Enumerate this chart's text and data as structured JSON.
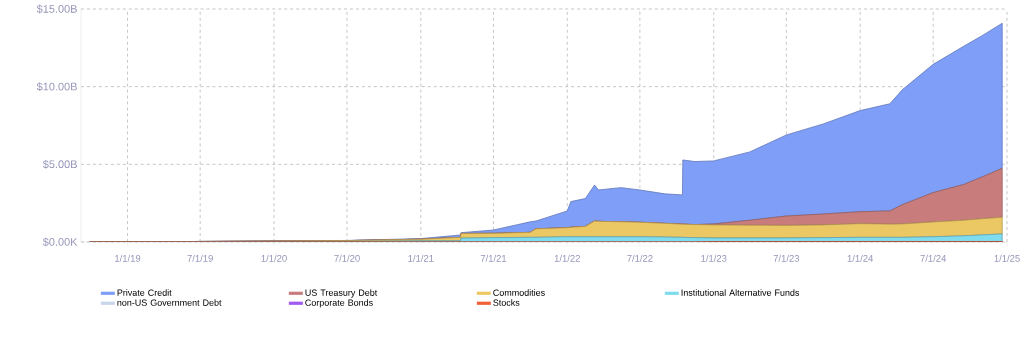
{
  "chart_data": {
    "type": "area",
    "stacked": true,
    "grid": true,
    "legend": "bottom",
    "x": [
      "2018-09-29",
      "2019-06-01",
      "2020-01-01",
      "2020-07-01",
      "2021-01-01",
      "2021-04-10",
      "2021-04-11",
      "2021-07-01",
      "2021-10-01",
      "2021-10-15",
      "2022-01-01",
      "2022-01-10",
      "2022-02-15",
      "2022-03-10",
      "2022-03-20",
      "2022-05-15",
      "2022-07-01",
      "2022-09-01",
      "2022-10-15",
      "2022-10-16",
      "2022-11-15",
      "2023-01-01",
      "2023-04-01",
      "2023-07-01",
      "2023-10-01",
      "2024-01-01",
      "2024-03-15",
      "2024-04-15",
      "2024-07-01",
      "2024-09-15",
      "2024-11-01",
      "2024-12-20"
    ],
    "xlim": [
      "2018-09-07",
      "2025-01-01"
    ],
    "xticks": [
      {
        "value": "2019-01-01",
        "label": "1/1/19"
      },
      {
        "value": "2019-07-01",
        "label": "7/1/19"
      },
      {
        "value": "2020-01-01",
        "label": "1/1/20"
      },
      {
        "value": "2020-07-01",
        "label": "7/1/20"
      },
      {
        "value": "2021-01-01",
        "label": "1/1/21"
      },
      {
        "value": "2021-07-01",
        "label": "7/1/21"
      },
      {
        "value": "2022-01-01",
        "label": "1/1/22"
      },
      {
        "value": "2022-07-01",
        "label": "7/1/22"
      },
      {
        "value": "2023-01-01",
        "label": "1/1/23"
      },
      {
        "value": "2023-07-01",
        "label": "7/1/23"
      },
      {
        "value": "2024-01-01",
        "label": "1/1/24"
      },
      {
        "value": "2024-07-01",
        "label": "7/1/24"
      },
      {
        "value": "2025-01-01",
        "label": "1/1/25"
      }
    ],
    "ylim": [
      0,
      15
    ],
    "yticks": [
      {
        "value": 0,
        "label": "$0.00K"
      },
      {
        "value": 5,
        "label": "$5.00B"
      },
      {
        "value": 10,
        "label": "$10.00B"
      },
      {
        "value": 15,
        "label": "$15.00B"
      }
    ],
    "series": [
      {
        "name": "Stocks",
        "color": "#f2603a",
        "values": [
          0,
          0,
          0,
          0,
          0,
          0,
          0,
          0,
          0,
          0,
          0,
          0,
          0,
          0,
          0,
          0,
          0,
          0,
          0,
          0,
          0,
          0.03,
          0.03,
          0.03,
          0.03,
          0.03,
          0.03,
          0.03,
          0.03,
          0.03,
          0.03,
          0.03
        ]
      },
      {
        "name": "Corporate Bonds",
        "color": "#a259f0",
        "values": [
          null,
          null,
          null,
          null,
          null,
          null,
          null,
          null,
          null,
          null,
          null,
          null,
          null,
          null,
          null,
          null,
          null,
          null,
          null,
          null,
          null,
          null,
          null,
          null,
          null,
          null,
          null,
          null,
          null,
          null,
          null,
          null
        ]
      },
      {
        "name": "non-US Government Debt",
        "color": "#c8d6ea",
        "values": [
          null,
          null,
          null,
          null,
          null,
          null,
          null,
          null,
          null,
          null,
          null,
          null,
          null,
          null,
          null,
          null,
          null,
          null,
          null,
          null,
          null,
          null,
          null,
          null,
          null,
          null,
          null,
          null,
          null,
          null,
          null,
          null
        ]
      },
      {
        "name": "Institutional Alternative Funds",
        "color": "#7fdcee",
        "values": [
          0.01,
          0.02,
          0.03,
          0.04,
          0.08,
          0.08,
          0.25,
          0.28,
          0.3,
          0.3,
          0.34,
          0.34,
          0.34,
          0.34,
          0.34,
          0.34,
          0.34,
          0.32,
          0.3,
          0.3,
          0.28,
          0.23,
          0.23,
          0.23,
          0.25,
          0.27,
          0.27,
          0.27,
          0.31,
          0.37,
          0.43,
          0.49
        ]
      },
      {
        "name": "Commodities",
        "color": "#ecc865",
        "values": [
          0,
          0.01,
          0.03,
          0.05,
          0.1,
          0.22,
          0.3,
          0.28,
          0.32,
          0.55,
          0.58,
          0.61,
          0.66,
          1.01,
          0.99,
          0.96,
          0.93,
          0.88,
          0.85,
          0.85,
          0.84,
          0.84,
          0.82,
          0.81,
          0.82,
          0.88,
          0.85,
          0.86,
          0.95,
          1.0,
          1.04,
          1.07
        ]
      },
      {
        "name": "US Treasury Debt",
        "color": "#c97c7c",
        "values": [
          0,
          0,
          0,
          0,
          0,
          0,
          0,
          0,
          0,
          0,
          0,
          0,
          0,
          0,
          0,
          0,
          0,
          0,
          0,
          0,
          0,
          0.06,
          0.32,
          0.6,
          0.7,
          0.77,
          0.85,
          1.24,
          1.89,
          2.3,
          2.7,
          3.15
        ]
      },
      {
        "name": "Private Credit",
        "color": "#7f9ef7",
        "values": [
          0,
          0,
          0.01,
          0.01,
          0.04,
          0.15,
          0.05,
          0.21,
          0.68,
          0.5,
          1.08,
          1.65,
          1.8,
          2.32,
          2.02,
          2.2,
          2.08,
          1.9,
          1.88,
          4.13,
          4.06,
          4.06,
          4.4,
          5.22,
          5.8,
          6.51,
          6.9,
          7.4,
          8.26,
          8.9,
          9.1,
          9.34
        ]
      }
    ]
  }
}
